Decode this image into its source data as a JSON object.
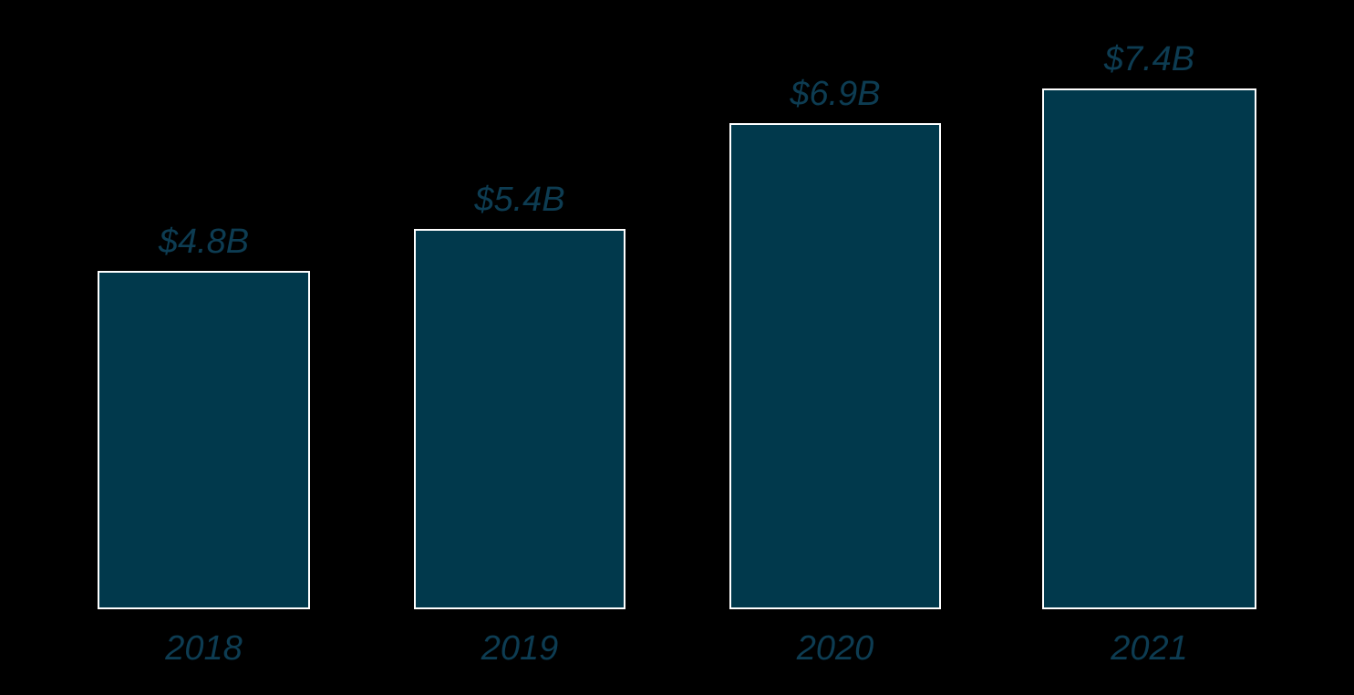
{
  "chart_data": {
    "type": "bar",
    "title": "",
    "categories": [
      "2018",
      "2019",
      "2020",
      "2021"
    ],
    "values": [
      4.8,
      5.4,
      6.9,
      7.4
    ],
    "value_labels": [
      "$4.8B",
      "$5.4B",
      "$6.9B",
      "$7.4B"
    ],
    "ylim": [
      0,
      7.4
    ],
    "grid": false,
    "legend": null,
    "axis_lines": false,
    "colors": {
      "background": "#000000",
      "bar_fill": "#01394c",
      "bar_border": "#ffffff",
      "label_text": "#0d3c52"
    }
  }
}
